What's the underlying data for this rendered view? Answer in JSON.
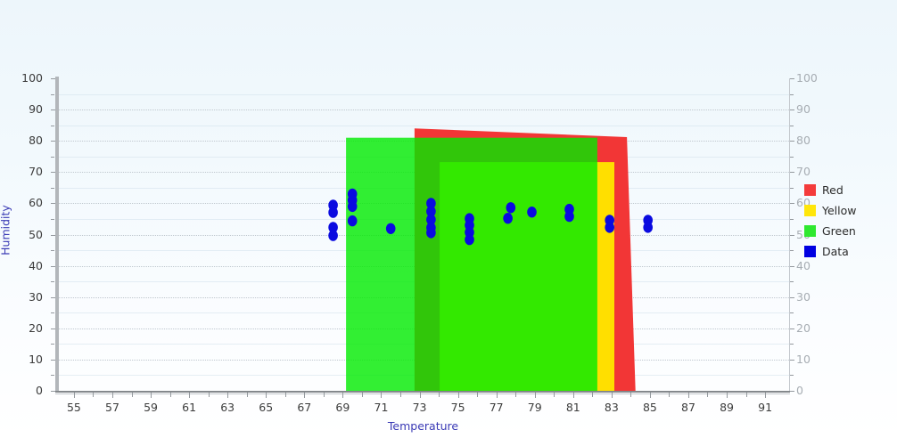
{
  "chart_data": {
    "type": "scatter",
    "xlabel": "Temperature",
    "ylabel": "Humidity",
    "xlim": [
      54.12,
      92.25
    ],
    "ylim": [
      0,
      100
    ],
    "x_tick_labels": [
      55,
      57,
      59,
      61,
      63,
      65,
      67,
      69,
      71,
      73,
      75,
      77,
      79,
      81,
      83,
      85,
      87,
      89,
      91
    ],
    "x_minor_tick_step": 1,
    "y_tick_labels": [
      0,
      10,
      20,
      30,
      40,
      50,
      60,
      70,
      80,
      90,
      100
    ],
    "y_minor_tick_step": 5,
    "grid": "horizontal, dotted major every 10, faint minor every 5",
    "zones": [
      {
        "name": "Red",
        "shape": "polygon",
        "color": "#f23636",
        "opacity": 1,
        "points": [
          [
            72.74,
            84.0
          ],
          [
            83.8,
            81.2
          ],
          [
            84.25,
            0
          ],
          [
            72.74,
            0
          ]
        ]
      },
      {
        "name": "Yellow",
        "shape": "rect",
        "color": "#ffdf00",
        "opacity": 1,
        "x": [
          74.05,
          83.15
        ],
        "y": [
          0,
          73.2
        ]
      },
      {
        "name": "Green",
        "shape": "rect",
        "color": "#00eb00",
        "opacity": 0.8,
        "x": [
          69.17,
          82.26
        ],
        "y": [
          0,
          81.0
        ]
      }
    ],
    "points": {
      "name": "Data",
      "color": "#0a0ae0",
      "values": [
        [
          68.5,
          59.4
        ],
        [
          68.5,
          57.1
        ],
        [
          68.5,
          52.3
        ],
        [
          68.5,
          49.7
        ],
        [
          69.5,
          63.0
        ],
        [
          69.5,
          61.0
        ],
        [
          69.5,
          59.0
        ],
        [
          69.5,
          54.4
        ],
        [
          71.5,
          51.9
        ],
        [
          73.6,
          60.0
        ],
        [
          73.6,
          57.4
        ],
        [
          73.6,
          54.8
        ],
        [
          73.6,
          52.2
        ],
        [
          73.6,
          50.6
        ],
        [
          75.6,
          55.1
        ],
        [
          75.6,
          53.0
        ],
        [
          75.6,
          50.7
        ],
        [
          75.6,
          48.4
        ],
        [
          77.75,
          58.6
        ],
        [
          77.6,
          55.2
        ],
        [
          78.85,
          57.2
        ],
        [
          80.8,
          58.1
        ],
        [
          80.8,
          55.8
        ],
        [
          82.9,
          54.6
        ],
        [
          82.9,
          52.3
        ],
        [
          84.9,
          54.6
        ],
        [
          84.9,
          52.3
        ]
      ]
    },
    "legend": {
      "position": "right",
      "items": [
        {
          "label": "Red",
          "color": "#f43b3b"
        },
        {
          "label": "Yellow",
          "color": "#ffe60a"
        },
        {
          "label": "Green",
          "color": "#2fe82f"
        },
        {
          "label": "Data",
          "color": "#0000e1"
        }
      ]
    }
  }
}
